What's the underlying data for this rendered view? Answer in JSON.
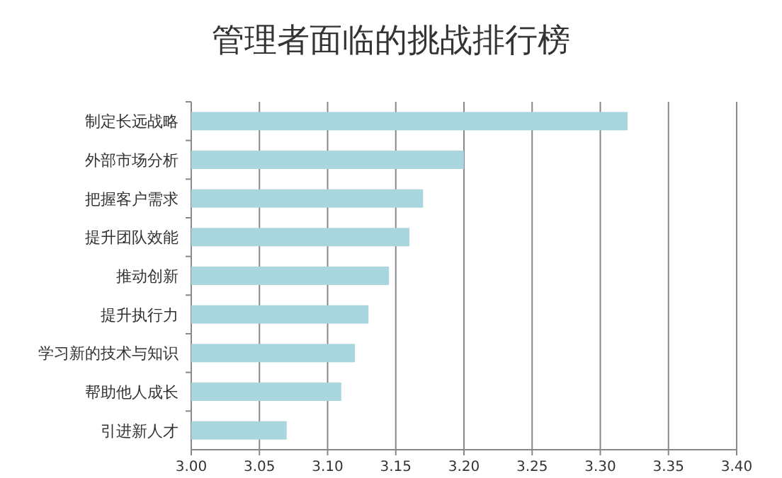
{
  "chart_data": {
    "type": "bar",
    "orientation": "horizontal",
    "title": "管理者面临的挑战排行榜",
    "categories": [
      "制定长远战略",
      "外部市场分析",
      "把握客户需求",
      "提升团队效能",
      "推动创新",
      "提升执行力",
      "学习新的技术与知识",
      "帮助他人成长",
      "引进新人才"
    ],
    "values": [
      3.32,
      3.2,
      3.17,
      3.16,
      3.145,
      3.13,
      3.12,
      3.11,
      3.07
    ],
    "color": "#a8d5de",
    "xlim": [
      3.0,
      3.4
    ],
    "xticks": [
      {
        "value": 3.0,
        "label": "3.00"
      },
      {
        "value": 3.05,
        "label": "3.05"
      },
      {
        "value": 3.1,
        "label": "3.10"
      },
      {
        "value": 3.15,
        "label": "3.15"
      },
      {
        "value": 3.2,
        "label": "3.20"
      },
      {
        "value": 3.25,
        "label": "3.25"
      },
      {
        "value": 3.3,
        "label": "3.30"
      },
      {
        "value": 3.35,
        "label": "3.35"
      },
      {
        "value": 3.4,
        "label": "3.40"
      }
    ],
    "grid": "x"
  }
}
